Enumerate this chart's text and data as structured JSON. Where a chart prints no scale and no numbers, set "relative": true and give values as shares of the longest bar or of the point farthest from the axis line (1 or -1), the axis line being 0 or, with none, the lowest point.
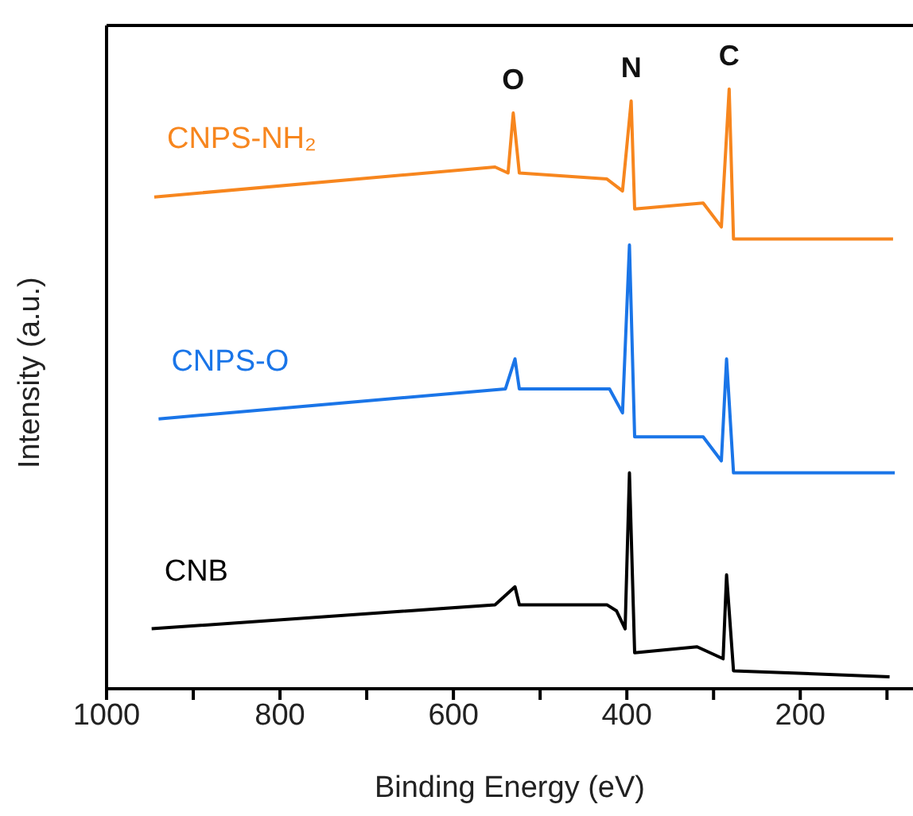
{
  "chart_data": {
    "type": "line",
    "relative": true,
    "xlabel": "Binding Energy (eV)",
    "ylabel": "Intensity (a.u.)",
    "xlim": [
      1000,
      70
    ],
    "xticks": [
      1000,
      {
        "value": 900,
        "label": null
      },
      800,
      {
        "value": 700,
        "label": null
      },
      600,
      {
        "value": 500,
        "label": null
      },
      400,
      {
        "value": 300,
        "label": null
      },
      200,
      {
        "value": 100,
        "label": null
      }
    ],
    "marker": "none",
    "line_style": "solid",
    "annotations": [
      {
        "text": "O",
        "x": 531,
        "y": 0.96
      },
      {
        "text": "N",
        "x": 395,
        "y": 0.98
      },
      {
        "text": "C",
        "x": 282,
        "y": 1.0
      }
    ],
    "series": [
      {
        "name": "CNPS-NH₂",
        "color": "#f7861e",
        "x": [
          945,
          552,
          537,
          531,
          524,
          423,
          405,
          395,
          391,
          312,
          291,
          282,
          277,
          93
        ],
        "values": [
          0.82,
          0.87,
          0.86,
          0.96,
          0.86,
          0.85,
          0.83,
          0.98,
          0.8,
          0.81,
          0.77,
          1.0,
          0.75,
          0.75
        ]
      },
      {
        "name": "CNPS-O",
        "color": "#1a75e8",
        "x": [
          940,
          540,
          529,
          524,
          420,
          405,
          397,
          391,
          312,
          291,
          285,
          277,
          91
        ],
        "values": [
          0.45,
          0.5,
          0.55,
          0.5,
          0.5,
          0.46,
          0.74,
          0.42,
          0.42,
          0.38,
          0.55,
          0.36,
          0.36
        ]
      },
      {
        "name": "CNB",
        "color": "#000000",
        "x": [
          948,
          552,
          529,
          524,
          423,
          412,
          402,
          397,
          391,
          319,
          289,
          285,
          277,
          97
        ],
        "values": [
          0.1,
          0.14,
          0.17,
          0.14,
          0.14,
          0.13,
          0.1,
          0.36,
          0.06,
          0.07,
          0.05,
          0.19,
          0.03,
          0.02
        ]
      }
    ]
  }
}
